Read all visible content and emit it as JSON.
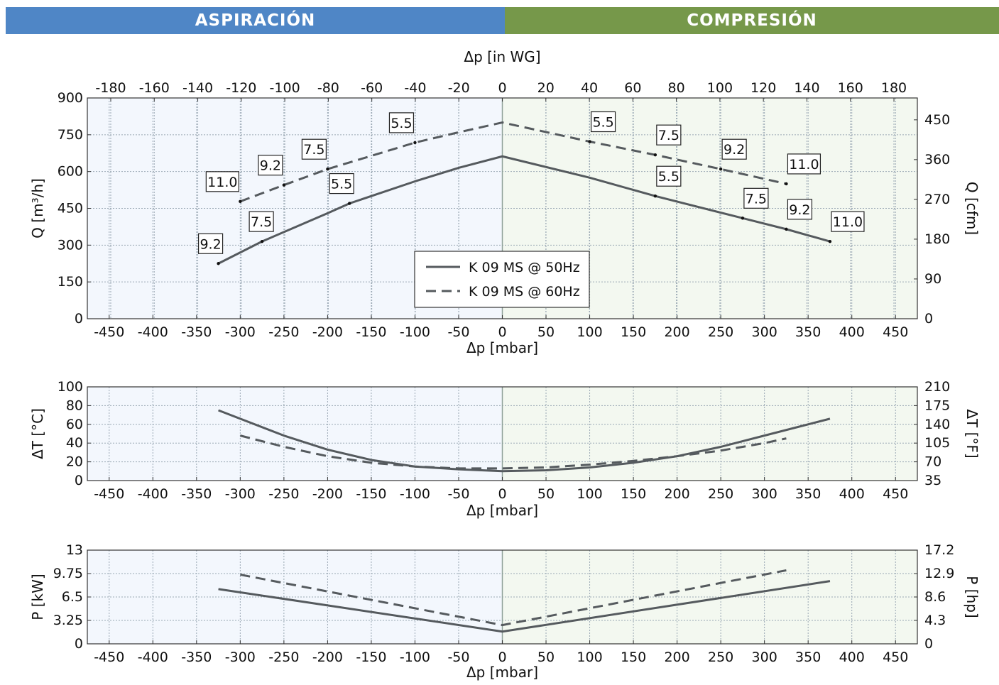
{
  "header": {
    "left_label": "ASPIRACIÓN",
    "right_label": "COMPRESIÓN",
    "left_color": "#4f86c6",
    "right_color": "#76984a"
  },
  "colors": {
    "suction_bg": "#f3f7fd",
    "compression_bg": "#f3f8f0",
    "grid": "#9aa8b4",
    "curve": "#555a5e",
    "divider": "#8fa29a"
  },
  "legend": {
    "line_50": "K 09 MS @ 50Hz",
    "line_60": "K 09 MS @ 60Hz"
  },
  "chart_data": [
    {
      "type": "line",
      "title": "",
      "xlabel": "Δp [mbar]",
      "x2label": "Δp [in WG]",
      "ylabel": "Q [m³/h]",
      "y2label": "Q [cfm]",
      "xlim": [
        -475,
        475
      ],
      "ylim": [
        0,
        900
      ],
      "xticks": [
        -450,
        -400,
        -350,
        -300,
        -250,
        -200,
        -150,
        -100,
        -50,
        0,
        50,
        100,
        150,
        200,
        250,
        300,
        350,
        400,
        450
      ],
      "yticks": [
        0,
        150,
        300,
        450,
        600,
        750,
        900
      ],
      "x2ticks": [
        -180,
        -160,
        -140,
        -120,
        -100,
        -80,
        -60,
        -40,
        -20,
        0,
        20,
        40,
        60,
        80,
        100,
        120,
        140,
        160,
        180
      ],
      "y2ticks": [
        0,
        90,
        180,
        270,
        360,
        450
      ],
      "grid": true,
      "legend_position": "bottom-center",
      "series": [
        {
          "name": "K 09 MS @ 50Hz",
          "style": "solid",
          "x": [
            -325,
            -275,
            -200,
            -175,
            -100,
            -50,
            0,
            100,
            175,
            275,
            325,
            375
          ],
          "y": [
            225,
            315,
            430,
            470,
            560,
            615,
            662,
            575,
            500,
            410,
            365,
            315
          ]
        },
        {
          "name": "K 09 MS @ 60Hz",
          "style": "dashed",
          "x": [
            -300,
            -250,
            -200,
            -100,
            -50,
            0,
            100,
            175,
            250,
            325
          ],
          "y": [
            478,
            545,
            610,
            718,
            760,
            800,
            722,
            668,
            610,
            550
          ]
        }
      ],
      "annotations": [
        {
          "x": -325,
          "y": 225,
          "label": "9.2",
          "dx": -28,
          "dy": -14,
          "series": "K 09 MS @ 50Hz"
        },
        {
          "x": -275,
          "y": 315,
          "label": "7.5",
          "dx": -18,
          "dy": -14,
          "series": "K 09 MS @ 50Hz"
        },
        {
          "x": -175,
          "y": 470,
          "label": "5.5",
          "dx": -28,
          "dy": -14,
          "series": "K 09 MS @ 50Hz"
        },
        {
          "x": 175,
          "y": 500,
          "label": "5.5",
          "dx": 2,
          "dy": -14,
          "series": "K 09 MS @ 50Hz"
        },
        {
          "x": 275,
          "y": 410,
          "label": "7.5",
          "dx": 2,
          "dy": -14,
          "series": "K 09 MS @ 50Hz"
        },
        {
          "x": 325,
          "y": 365,
          "label": "9.2",
          "dx": 2,
          "dy": -14,
          "series": "K 09 MS @ 50Hz"
        },
        {
          "x": 375,
          "y": 315,
          "label": "11.0",
          "dx": 2,
          "dy": -14,
          "series": "K 09 MS @ 50Hz"
        },
        {
          "x": -300,
          "y": 478,
          "label": "11.0",
          "dx": -48,
          "dy": -14,
          "series": "K 09 MS @ 60Hz"
        },
        {
          "x": -250,
          "y": 545,
          "label": "9.2",
          "dx": -36,
          "dy": -14,
          "series": "K 09 MS @ 60Hz"
        },
        {
          "x": -200,
          "y": 610,
          "label": "7.5",
          "dx": -36,
          "dy": -14,
          "series": "K 09 MS @ 60Hz"
        },
        {
          "x": -100,
          "y": 718,
          "label": "5.5",
          "dx": -36,
          "dy": -14,
          "series": "K 09 MS @ 60Hz"
        },
        {
          "x": 100,
          "y": 722,
          "label": "5.5",
          "dx": 2,
          "dy": -14,
          "series": "K 09 MS @ 60Hz"
        },
        {
          "x": 175,
          "y": 668,
          "label": "7.5",
          "dx": 2,
          "dy": -14,
          "series": "K 09 MS @ 60Hz"
        },
        {
          "x": 250,
          "y": 610,
          "label": "9.2",
          "dx": 2,
          "dy": -14,
          "series": "K 09 MS @ 60Hz"
        },
        {
          "x": 325,
          "y": 550,
          "label": "11.0",
          "dx": 2,
          "dy": -14,
          "series": "K 09 MS @ 60Hz"
        }
      ]
    },
    {
      "type": "line",
      "title": "",
      "xlabel": "Δp [mbar]",
      "ylabel": "ΔT [°C]",
      "y2label": "ΔT [°F]",
      "xlim": [
        -475,
        475
      ],
      "ylim": [
        0,
        100
      ],
      "xticks": [
        -450,
        -400,
        -350,
        -300,
        -250,
        -200,
        -150,
        -100,
        -50,
        0,
        50,
        100,
        150,
        200,
        250,
        300,
        350,
        400,
        450
      ],
      "yticks": [
        0,
        20,
        40,
        60,
        80,
        100
      ],
      "y2ticks": [
        35,
        70,
        105,
        140,
        175,
        210
      ],
      "grid": true,
      "series": [
        {
          "name": "K 09 MS @ 50Hz",
          "style": "solid",
          "x": [
            -325,
            -250,
            -200,
            -150,
            -100,
            -50,
            0,
            50,
            100,
            150,
            200,
            250,
            300,
            375
          ],
          "y": [
            75,
            48,
            33,
            22,
            15,
            12,
            10,
            11,
            14,
            19,
            26,
            36,
            48,
            66
          ]
        },
        {
          "name": "K 09 MS @ 60Hz",
          "style": "dashed",
          "x": [
            -300,
            -250,
            -200,
            -150,
            -100,
            -50,
            0,
            50,
            100,
            150,
            200,
            250,
            300,
            325
          ],
          "y": [
            48,
            36,
            26,
            19,
            15,
            13,
            13,
            14,
            17,
            21,
            26,
            32,
            40,
            45
          ]
        }
      ]
    },
    {
      "type": "line",
      "title": "",
      "xlabel": "Δp [mbar]",
      "ylabel": "P [kW]",
      "y2label": "P [hp]",
      "xlim": [
        -475,
        475
      ],
      "ylim": [
        0,
        13
      ],
      "xticks": [
        -450,
        -400,
        -350,
        -300,
        -250,
        -200,
        -150,
        -100,
        -50,
        0,
        50,
        100,
        150,
        200,
        250,
        300,
        350,
        400,
        450
      ],
      "yticks": [
        0,
        3.25,
        6.5,
        9.75,
        13
      ],
      "y2ticks": [
        0,
        4.3,
        8.6,
        12.9,
        17.2
      ],
      "grid": true,
      "series": [
        {
          "name": "K 09 MS @ 50Hz",
          "style": "solid",
          "x": [
            -325,
            0,
            375
          ],
          "y": [
            7.6,
            1.7,
            8.7
          ]
        },
        {
          "name": "K 09 MS @ 60Hz",
          "style": "dashed",
          "x": [
            -300,
            0,
            325
          ],
          "y": [
            9.6,
            2.6,
            10.2
          ]
        }
      ]
    }
  ]
}
